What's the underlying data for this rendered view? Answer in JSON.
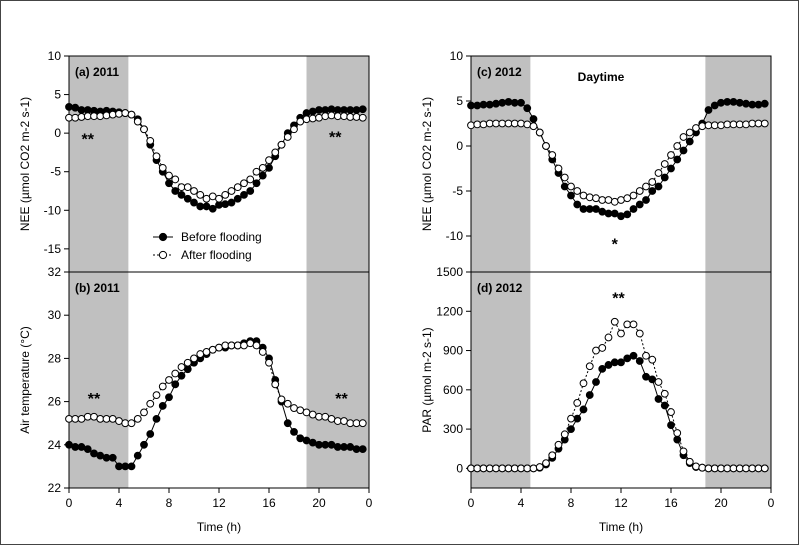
{
  "chart_data": [
    {
      "id": "a",
      "type": "line",
      "panel_title": "(a) 2011",
      "ylabel": "NEE (µmol CO2 m-2 s-1)",
      "xlabel": "",
      "ylim": [
        -18,
        10
      ],
      "yticks": [
        10,
        5,
        0,
        -5,
        -10,
        -15
      ],
      "xticks": [
        "0",
        "4",
        "8",
        "12",
        "16",
        "20",
        "0"
      ],
      "shaded": [
        [
          0,
          4.75
        ],
        [
          19.0,
          24
        ]
      ],
      "annotations": [
        {
          "text": "**",
          "x": 1.5,
          "y": -1.5
        },
        {
          "text": "**",
          "x": 21.3,
          "y": -1.2
        }
      ],
      "legend": [
        "Before flooding",
        "After flooding"
      ],
      "series": [
        {
          "name": "Before flooding",
          "marker": "filled",
          "x": [
            0,
            0.5,
            1,
            1.5,
            2,
            2.5,
            3,
            3.5,
            4,
            4.5,
            5,
            5.5,
            6,
            6.5,
            7,
            7.5,
            8,
            8.5,
            9,
            9.5,
            10,
            10.5,
            11,
            11.5,
            12,
            12.5,
            13,
            13.5,
            14,
            14.5,
            15,
            15.5,
            16,
            16.5,
            17,
            17.5,
            18,
            18.5,
            19,
            19.5,
            20,
            20.5,
            21,
            21.5,
            22,
            22.5,
            23,
            23.5
          ],
          "y": [
            3.4,
            3.3,
            3.0,
            3.0,
            2.9,
            2.8,
            2.9,
            2.8,
            2.7,
            2.6,
            2.4,
            1.8,
            0.5,
            -1.5,
            -3.5,
            -5.0,
            -6.5,
            -7.5,
            -8.0,
            -8.5,
            -9.0,
            -9.5,
            -9.5,
            -9.8,
            -9.3,
            -9.2,
            -9.0,
            -8.5,
            -8.0,
            -7.5,
            -6.5,
            -5.5,
            -4.5,
            -3.0,
            -1.5,
            0.0,
            1.0,
            2.0,
            2.6,
            2.8,
            3.0,
            3.0,
            3.1,
            3.0,
            3.0,
            3.0,
            3.0,
            3.1
          ]
        },
        {
          "name": "After flooding",
          "marker": "open",
          "x": [
            0,
            0.5,
            1,
            1.5,
            2,
            2.5,
            3,
            3.5,
            4,
            4.5,
            5,
            5.5,
            6,
            6.5,
            7,
            7.5,
            8,
            8.5,
            9,
            9.5,
            10,
            10.5,
            11,
            11.5,
            12,
            12.5,
            13,
            13.5,
            14,
            14.5,
            15,
            15.5,
            16,
            16.5,
            17,
            17.5,
            18,
            18.5,
            19,
            19.5,
            20,
            20.5,
            21,
            21.5,
            22,
            22.5,
            23,
            23.5
          ],
          "y": [
            2.0,
            2.0,
            2.1,
            2.2,
            2.2,
            2.2,
            2.3,
            2.4,
            2.5,
            2.6,
            2.4,
            1.5,
            0.5,
            -1.0,
            -3.0,
            -4.5,
            -5.5,
            -6.0,
            -7.0,
            -7.0,
            -7.5,
            -8.0,
            -8.5,
            -8.2,
            -8.5,
            -8.0,
            -7.5,
            -7.0,
            -6.5,
            -6.0,
            -5.0,
            -4.5,
            -3.5,
            -2.5,
            -1.5,
            -0.5,
            0.5,
            1.5,
            1.8,
            1.9,
            2.0,
            2.2,
            2.3,
            2.2,
            2.2,
            2.1,
            2.1,
            2.0
          ]
        }
      ]
    },
    {
      "id": "b",
      "type": "line",
      "panel_title": "(b) 2011",
      "ylabel": "Air temperature (°C)",
      "xlabel": "Time (h)",
      "ylim": [
        22,
        32
      ],
      "yticks": [
        32,
        30,
        28,
        26,
        24,
        22
      ],
      "xticks": [
        "0",
        "4",
        "8",
        "12",
        "16",
        "20",
        "0"
      ],
      "shaded": [
        [
          0,
          4.75
        ],
        [
          19.0,
          24
        ]
      ],
      "annotations": [
        {
          "text": "**",
          "x": 2.0,
          "y": 25.9
        },
        {
          "text": "**",
          "x": 21.8,
          "y": 25.9
        }
      ],
      "series": [
        {
          "name": "Before flooding",
          "marker": "filled",
          "x": [
            0,
            0.5,
            1,
            1.5,
            2,
            2.5,
            3,
            3.5,
            4,
            4.5,
            5,
            5.5,
            6,
            6.5,
            7,
            7.5,
            8,
            8.5,
            9,
            9.5,
            10,
            10.5,
            11,
            11.5,
            12,
            12.5,
            13,
            13.5,
            14,
            14.5,
            15,
            15.5,
            16,
            16.5,
            17,
            17.5,
            18,
            18.5,
            19,
            19.5,
            20,
            20.5,
            21,
            21.5,
            22,
            22.5,
            23,
            23.5
          ],
          "y": [
            24.0,
            23.9,
            23.9,
            23.8,
            23.6,
            23.5,
            23.4,
            23.4,
            23.0,
            23.0,
            23.0,
            23.5,
            24.0,
            24.5,
            25.2,
            25.8,
            26.2,
            26.8,
            27.2,
            27.5,
            27.8,
            28.0,
            28.2,
            28.4,
            28.5,
            28.5,
            28.6,
            28.6,
            28.7,
            28.8,
            28.8,
            28.5,
            28.0,
            27.0,
            26.0,
            25.0,
            24.6,
            24.3,
            24.2,
            24.1,
            24.0,
            24.0,
            24.0,
            23.9,
            23.9,
            23.9,
            23.8,
            23.8
          ]
        },
        {
          "name": "After flooding",
          "marker": "open",
          "x": [
            0,
            0.5,
            1,
            1.5,
            2,
            2.5,
            3,
            3.5,
            4,
            4.5,
            5,
            5.5,
            6,
            6.5,
            7,
            7.5,
            8,
            8.5,
            9,
            9.5,
            10,
            10.5,
            11,
            11.5,
            12,
            12.5,
            13,
            13.5,
            14,
            14.5,
            15,
            15.5,
            16,
            16.5,
            17,
            17.5,
            18,
            18.5,
            19,
            19.5,
            20,
            20.5,
            21,
            21.5,
            22,
            22.5,
            23,
            23.5
          ],
          "y": [
            25.2,
            25.2,
            25.2,
            25.3,
            25.3,
            25.2,
            25.2,
            25.2,
            25.1,
            25.0,
            25.0,
            25.2,
            25.5,
            25.9,
            26.3,
            26.7,
            27.0,
            27.3,
            27.6,
            27.8,
            28.0,
            28.2,
            28.3,
            28.4,
            28.5,
            28.6,
            28.6,
            28.6,
            28.6,
            28.7,
            28.6,
            28.3,
            27.8,
            26.8,
            26.1,
            25.9,
            25.7,
            25.6,
            25.5,
            25.4,
            25.3,
            25.3,
            25.2,
            25.1,
            25.1,
            25.0,
            25.0,
            25.0
          ]
        }
      ]
    },
    {
      "id": "c",
      "type": "line",
      "panel_title": "(c) 2012",
      "subtitle": "Daytime",
      "ylabel": "NEE (µmol CO2 m-2 s-1)",
      "xlabel": "",
      "ylim": [
        -14,
        10
      ],
      "yticks": [
        10,
        5,
        0,
        -5,
        -10
      ],
      "xticks": [
        "0",
        "4",
        "8",
        "12",
        "16",
        "20",
        "0"
      ],
      "shaded": [
        [
          0,
          4.75
        ],
        [
          18.75,
          24
        ]
      ],
      "annotations": [
        {
          "text": "*",
          "x": 11.5,
          "y": -11.5
        }
      ],
      "series": [
        {
          "name": "Before flooding",
          "marker": "filled",
          "x": [
            0,
            0.5,
            1,
            1.5,
            2,
            2.5,
            3,
            3.5,
            4,
            4.5,
            5,
            5.5,
            6,
            6.5,
            7,
            7.5,
            8,
            8.5,
            9,
            9.5,
            10,
            10.5,
            11,
            11.5,
            12,
            12.5,
            13,
            13.5,
            14,
            14.5,
            15,
            15.5,
            16,
            16.5,
            17,
            17.5,
            18,
            18.5,
            19,
            19.5,
            20,
            20.5,
            21,
            21.5,
            22,
            22.5,
            23,
            23.5
          ],
          "y": [
            4.5,
            4.5,
            4.6,
            4.6,
            4.7,
            4.8,
            4.9,
            4.8,
            4.8,
            4.2,
            3.0,
            1.5,
            0.0,
            -1.5,
            -3.0,
            -4.5,
            -5.5,
            -6.5,
            -7.0,
            -7.0,
            -7.0,
            -7.3,
            -7.5,
            -7.5,
            -7.8,
            -7.6,
            -7.0,
            -6.5,
            -6.0,
            -5.0,
            -4.5,
            -3.5,
            -2.5,
            -1.5,
            -0.5,
            0.5,
            1.5,
            2.5,
            4.0,
            4.5,
            4.8,
            4.9,
            4.9,
            4.8,
            4.7,
            4.6,
            4.6,
            4.7
          ]
        },
        {
          "name": "After flooding",
          "marker": "open",
          "x": [
            0,
            0.5,
            1,
            1.5,
            2,
            2.5,
            3,
            3.5,
            4,
            4.5,
            5,
            5.5,
            6,
            6.5,
            7,
            7.5,
            8,
            8.5,
            9,
            9.5,
            10,
            10.5,
            11,
            11.5,
            12,
            12.5,
            13,
            13.5,
            14,
            14.5,
            15,
            15.5,
            16,
            16.5,
            17,
            17.5,
            18,
            18.5,
            19,
            19.5,
            20,
            20.5,
            21,
            21.5,
            22,
            22.5,
            23,
            23.5
          ],
          "y": [
            2.3,
            2.4,
            2.4,
            2.5,
            2.5,
            2.5,
            2.5,
            2.5,
            2.5,
            2.4,
            2.2,
            1.5,
            0.0,
            -1.0,
            -2.5,
            -3.5,
            -4.5,
            -5.0,
            -5.5,
            -5.7,
            -5.8,
            -6.0,
            -6.0,
            -6.2,
            -6.0,
            -5.8,
            -5.5,
            -5.0,
            -4.5,
            -4.0,
            -3.0,
            -2.0,
            -1.0,
            0.0,
            1.0,
            1.5,
            2.0,
            2.2,
            2.3,
            2.3,
            2.3,
            2.4,
            2.4,
            2.4,
            2.4,
            2.5,
            2.5,
            2.5
          ]
        }
      ]
    },
    {
      "id": "d",
      "type": "line",
      "panel_title": "(d) 2012",
      "ylabel": "PAR (µmol m-2 s-1)",
      "xlabel": "Time (h)",
      "ylim": [
        -150,
        1500
      ],
      "yticks": [
        1500,
        1200,
        900,
        600,
        300,
        0
      ],
      "xticks": [
        "0",
        "4",
        "8",
        "12",
        "16",
        "20",
        "0"
      ],
      "shaded": [
        [
          0,
          4.75
        ],
        [
          18.75,
          24
        ]
      ],
      "annotations": [
        {
          "text": "**",
          "x": 11.8,
          "y": 1260
        }
      ],
      "series": [
        {
          "name": "Before flooding",
          "marker": "filled",
          "x": [
            0,
            0.5,
            1,
            1.5,
            2,
            2.5,
            3,
            3.5,
            4,
            4.5,
            5,
            5.5,
            6,
            6.5,
            7,
            7.5,
            8,
            8.5,
            9,
            9.5,
            10,
            10.5,
            11,
            11.5,
            12,
            12.5,
            13,
            13.5,
            14,
            14.5,
            15,
            15.5,
            16,
            16.5,
            17,
            17.5,
            18,
            18.5,
            19,
            19.5,
            20,
            20.5,
            21,
            21.5,
            22,
            22.5,
            23,
            23.5
          ],
          "y": [
            0,
            0,
            0,
            0,
            0,
            0,
            0,
            0,
            0,
            0,
            0,
            5,
            30,
            80,
            150,
            220,
            300,
            380,
            450,
            560,
            660,
            760,
            790,
            810,
            810,
            840,
            860,
            820,
            700,
            680,
            530,
            480,
            330,
            220,
            100,
            40,
            10,
            5,
            0,
            0,
            0,
            0,
            0,
            0,
            0,
            0,
            0,
            0
          ]
        },
        {
          "name": "After flooding",
          "marker": "open",
          "x": [
            0,
            0.5,
            1,
            1.5,
            2,
            2.5,
            3,
            3.5,
            4,
            4.5,
            5,
            5.5,
            6,
            6.5,
            7,
            7.5,
            8,
            8.5,
            9,
            9.5,
            10,
            10.5,
            11,
            11.5,
            12,
            12.5,
            13,
            13.5,
            14,
            14.5,
            15,
            15.5,
            16,
            16.5,
            17,
            17.5,
            18,
            18.5,
            19,
            19.5,
            20,
            20.5,
            21,
            21.5,
            22,
            22.5,
            23,
            23.5
          ],
          "y": [
            0,
            0,
            0,
            0,
            0,
            0,
            0,
            0,
            0,
            0,
            0,
            10,
            40,
            100,
            180,
            260,
            380,
            500,
            650,
            780,
            900,
            920,
            1000,
            1120,
            1030,
            1100,
            1100,
            1030,
            860,
            830,
            660,
            570,
            430,
            270,
            130,
            50,
            15,
            5,
            0,
            0,
            0,
            0,
            0,
            0,
            0,
            0,
            0,
            0
          ]
        }
      ]
    }
  ]
}
